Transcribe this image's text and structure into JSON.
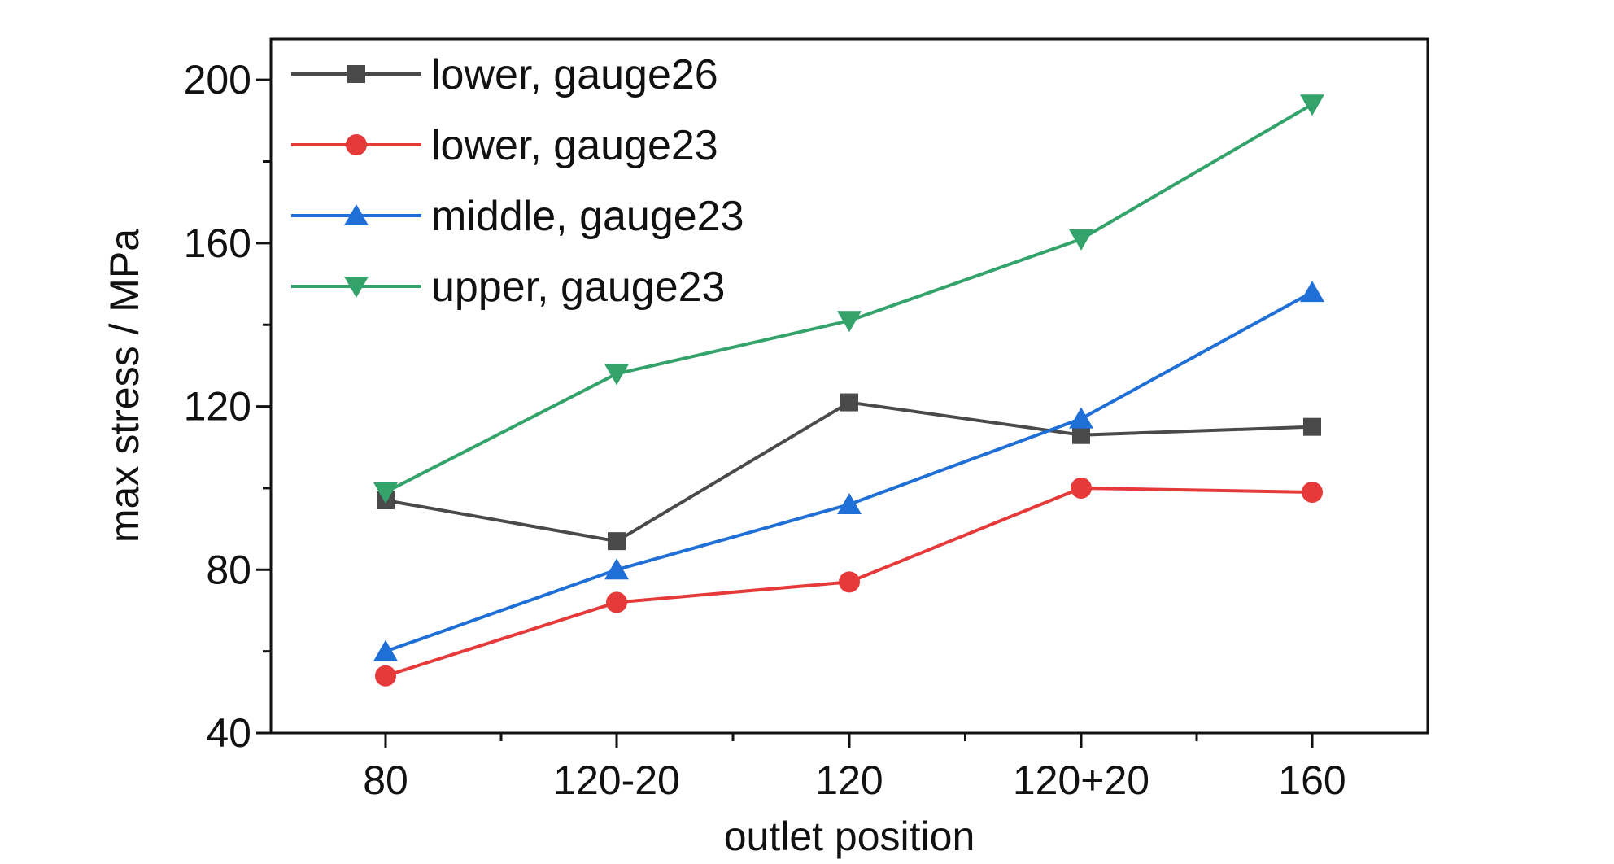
{
  "chart_data": {
    "type": "line",
    "title": "",
    "xlabel": "outlet position",
    "ylabel": "max stress / MPa",
    "categories": [
      "80",
      "120-20",
      "120",
      "120+20",
      "160"
    ],
    "ylim": [
      40,
      210
    ],
    "yticks": [
      40,
      80,
      120,
      160,
      200
    ],
    "grid": false,
    "legend_position": "top-left",
    "series": [
      {
        "name": "lower, gauge26",
        "color": "#4a4a4a",
        "marker": "square",
        "values": [
          97,
          87,
          121,
          113,
          115
        ]
      },
      {
        "name": "lower, gauge23",
        "color": "#e63a3a",
        "marker": "circle",
        "values": [
          54,
          72,
          77,
          100,
          99
        ]
      },
      {
        "name": "middle, gauge23",
        "color": "#1f6fd6",
        "marker": "triangle-up",
        "values": [
          60,
          80,
          96,
          117,
          148
        ]
      },
      {
        "name": "upper, gauge23",
        "color": "#34a36b",
        "marker": "triangle-down",
        "values": [
          99,
          128,
          141,
          161,
          194
        ]
      }
    ]
  }
}
